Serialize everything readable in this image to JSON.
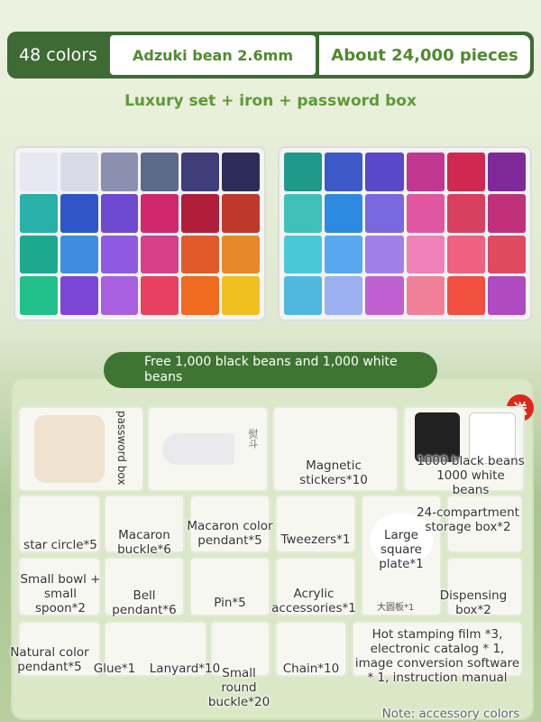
{
  "header": {
    "colors": "48 colors",
    "bean": "Adzuki bean 2.6mm",
    "pieces": "About 24,000 pieces",
    "subtitle": "Luxury set + iron + password box"
  },
  "banner": "Free 1,000 black beans and 1,000 white beans",
  "badge": "送",
  "image_labels": {
    "box": "password box",
    "iron": "熨斗",
    "plate": "大圆板*1"
  },
  "items": [
    {
      "label": "Magnetic stickers*10"
    },
    {
      "label": "1000 black beans 1000 white beans"
    },
    {
      "label": "star circle*5"
    },
    {
      "label": "Macaron buckle*6"
    },
    {
      "label": "Macaron color pendant*5"
    },
    {
      "label": "Tweezers*1"
    },
    {
      "label": "Large square plate*1"
    },
    {
      "label": "24-compartment storage box*2"
    },
    {
      "label": "Small bowl + small spoon*2"
    },
    {
      "label": "Bell pendant*6"
    },
    {
      "label": "Pin*5"
    },
    {
      "label": "Acrylic accessories*1"
    },
    {
      "label": "Dispensing box*2"
    },
    {
      "label": "Natural color pendant*5"
    },
    {
      "label": "Glue*1"
    },
    {
      "label": "Lanyard*10"
    },
    {
      "label": "Small round buckle*20"
    },
    {
      "label": "Chain*10"
    },
    {
      "label": "Hot stamping film *3, electronic catalog * 1, image conversion software * 1, instruction manual"
    }
  ],
  "note": "Note: accessory colors"
}
